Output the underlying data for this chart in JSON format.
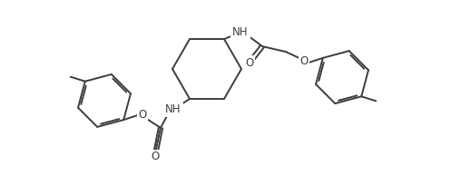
{
  "background_color": "#ffffff",
  "line_color": "#3d3d3d",
  "line_width": 1.4,
  "font_size": 8.5,
  "figsize": [
    5.08,
    1.94
  ],
  "dpi": 100,
  "xlim": [
    0,
    508
  ],
  "ylim": [
    0,
    194
  ]
}
